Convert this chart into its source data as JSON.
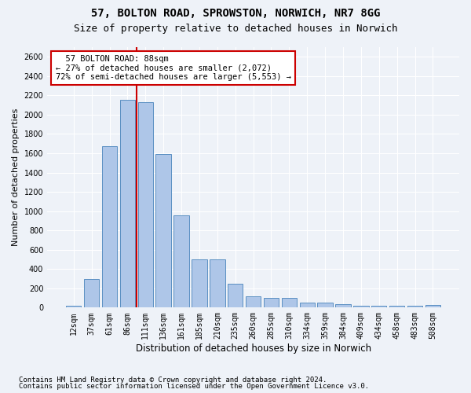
{
  "title1": "57, BOLTON ROAD, SPROWSTON, NORWICH, NR7 8GG",
  "title2": "Size of property relative to detached houses in Norwich",
  "xlabel": "Distribution of detached houses by size in Norwich",
  "ylabel": "Number of detached properties",
  "footer1": "Contains HM Land Registry data © Crown copyright and database right 2024.",
  "footer2": "Contains public sector information licensed under the Open Government Licence v3.0.",
  "categories": [
    "12sqm",
    "37sqm",
    "61sqm",
    "86sqm",
    "111sqm",
    "136sqm",
    "161sqm",
    "185sqm",
    "210sqm",
    "235sqm",
    "260sqm",
    "285sqm",
    "310sqm",
    "334sqm",
    "359sqm",
    "384sqm",
    "409sqm",
    "434sqm",
    "458sqm",
    "483sqm",
    "508sqm"
  ],
  "values": [
    22,
    300,
    1670,
    2150,
    2130,
    1590,
    960,
    500,
    500,
    250,
    120,
    100,
    100,
    50,
    50,
    35,
    20,
    20,
    20,
    20,
    25
  ],
  "bar_color": "#aec6e8",
  "bar_edge_color": "#5a8fc2",
  "annotation_title": "57 BOLTON ROAD: 88sqm",
  "annotation_line1": "← 27% of detached houses are smaller (2,072)",
  "annotation_line2": "72% of semi-detached houses are larger (5,553) →",
  "annotation_box_color": "#ffffff",
  "annotation_box_edge": "#cc0000",
  "red_line_color": "#cc0000",
  "ylim": [
    0,
    2700
  ],
  "yticks": [
    0,
    200,
    400,
    600,
    800,
    1000,
    1200,
    1400,
    1600,
    1800,
    2000,
    2200,
    2400,
    2600
  ],
  "background_color": "#eef2f8",
  "grid_color": "#ffffff",
  "title1_fontsize": 10,
  "title2_fontsize": 9,
  "xlabel_fontsize": 8.5,
  "ylabel_fontsize": 8,
  "tick_fontsize": 7,
  "annotation_fontsize": 7.5,
  "footer_fontsize": 6.5
}
